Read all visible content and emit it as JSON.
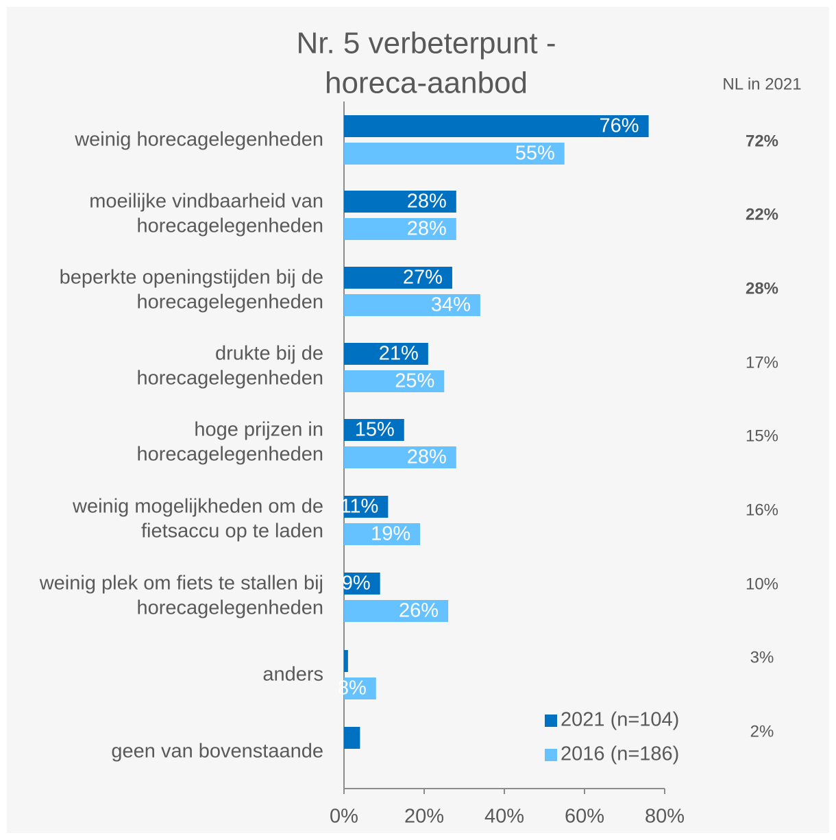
{
  "chart_data": {
    "type": "hbar",
    "title": [
      "Nr. 5 verbeterpunt -",
      "horeca-aanbod"
    ],
    "categories": [
      [
        "weinig horecagelegenheden"
      ],
      [
        "moeilijke vindbaarheid van",
        "horecagelegenheden"
      ],
      [
        "beperkte openingstijden bij de",
        "horecagelegenheden"
      ],
      [
        "drukte bij de",
        "horecagelegenheden"
      ],
      [
        "hoge prijzen in",
        "horecagelegenheden"
      ],
      [
        "weinig mogelijkheden om de",
        "fietsaccu op te laden"
      ],
      [
        "weinig plek om fiets te stallen bij",
        "horecagelegenheden"
      ],
      [
        "anders"
      ],
      [
        "geen van bovenstaande"
      ]
    ],
    "series": [
      {
        "name": "2021 (n=104)",
        "color": "#0070c0",
        "values": [
          76,
          28,
          27,
          21,
          15,
          11,
          9,
          1,
          4
        ],
        "value_labels": [
          "76%",
          "28%",
          "27%",
          "21%",
          "15%",
          "11%",
          "9%",
          null,
          null
        ]
      },
      {
        "name": "2016 (n=186)",
        "color": "#66c2ff",
        "values": [
          55,
          28,
          34,
          25,
          28,
          19,
          26,
          8,
          null
        ],
        "value_labels": [
          "55%",
          "28%",
          "34%",
          "25%",
          "28%",
          "19%",
          "26%",
          "8%",
          null
        ]
      }
    ],
    "xlim": [
      0,
      80
    ],
    "xticks": [
      {
        "value": 0,
        "label": "0%"
      },
      {
        "value": 20,
        "label": "20%"
      },
      {
        "value": 40,
        "label": "40%"
      },
      {
        "value": 60,
        "label": "60%"
      },
      {
        "value": 80,
        "label": "80%"
      }
    ],
    "side_column": {
      "title": "NL in 2021",
      "labels": [
        "72%",
        "22%",
        "28%",
        "17%",
        "15%",
        "16%",
        "10%",
        "3%",
        "2%"
      ],
      "bold": [
        true,
        true,
        true,
        false,
        false,
        false,
        false,
        false,
        false
      ]
    },
    "legend": "lower right"
  }
}
